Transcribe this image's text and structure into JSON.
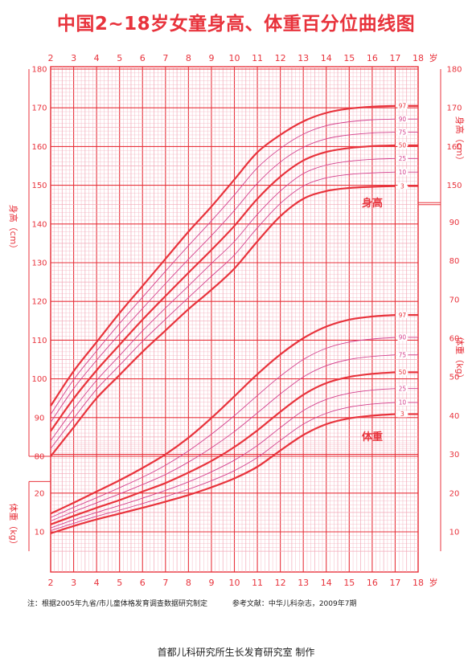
{
  "title": "中国2~18岁女童身高、体重百分位曲线图",
  "note": {
    "source": "注：根据2005年九省/市儿童体格发育调查数据研究制定",
    "reference": "参考文献：中华儿科杂志，2009年7期"
  },
  "footer": "首都儿科研究所生长发育研究室  制作",
  "colors": {
    "red": "#e8333c",
    "pink": "#d4418e",
    "grid": "#f2a9b8"
  },
  "chart_data": [
    {
      "type": "line",
      "title": "身高",
      "ylabel_left": "身高（cm）",
      "ylabel_right": "身高（cm）",
      "x_unit": "岁",
      "xlim": [
        2,
        18
      ],
      "ylim": [
        80,
        180
      ],
      "x_ticks": [
        "2",
        "3",
        "4",
        "5",
        "6",
        "7",
        "8",
        "9",
        "10",
        "11",
        "12",
        "13",
        "14",
        "15",
        "16",
        "17",
        "18"
      ],
      "y_ticks_left": [
        "80",
        "90",
        "100",
        "110",
        "120",
        "130",
        "140",
        "150",
        "160",
        "170",
        "180"
      ],
      "y_ticks_right": [
        "150",
        "160",
        "170",
        "180"
      ],
      "x": [
        2,
        3,
        4,
        5,
        6,
        7,
        8,
        9,
        10,
        11,
        12,
        13,
        14,
        15,
        16,
        17
      ],
      "series": [
        {
          "name": "3",
          "values": [
            80.0,
            87.5,
            95.0,
            101.0,
            107.0,
            112.5,
            118.0,
            123.0,
            128.5,
            135.5,
            142.0,
            146.5,
            148.5,
            149.3,
            149.6,
            149.8
          ]
        },
        {
          "name": "10",
          "values": [
            82.0,
            89.8,
            97.3,
            103.5,
            109.7,
            115.4,
            121.0,
            126.5,
            132.0,
            139.0,
            145.3,
            149.8,
            151.9,
            152.8,
            153.2,
            153.4
          ]
        },
        {
          "name": "25",
          "values": [
            84.0,
            92.2,
            99.6,
            106.0,
            112.4,
            118.3,
            124.0,
            129.8,
            135.5,
            142.5,
            148.5,
            153.0,
            155.2,
            156.2,
            156.7,
            156.9
          ]
        },
        {
          "name": "50",
          "values": [
            86.5,
            94.9,
            102.2,
            108.8,
            115.3,
            121.4,
            127.4,
            133.3,
            139.5,
            146.5,
            152.2,
            156.4,
            158.6,
            159.6,
            160.1,
            160.3
          ]
        },
        {
          "name": "75",
          "values": [
            88.8,
            97.5,
            104.8,
            111.6,
            118.2,
            124.6,
            130.9,
            137.0,
            143.5,
            150.5,
            156.0,
            159.8,
            162.0,
            163.0,
            163.5,
            163.7
          ]
        },
        {
          "name": "90",
          "values": [
            90.8,
            99.8,
            107.2,
            114.3,
            121.1,
            127.8,
            134.4,
            140.8,
            147.5,
            154.5,
            159.5,
            163.2,
            165.4,
            166.4,
            166.9,
            167.1
          ]
        },
        {
          "name": "97",
          "values": [
            93.0,
            102.0,
            109.5,
            117.0,
            124.0,
            131.0,
            138.0,
            144.5,
            151.5,
            158.5,
            163.0,
            166.5,
            168.7,
            169.8,
            170.3,
            170.5
          ]
        }
      ]
    },
    {
      "type": "line",
      "title": "体重",
      "ylabel_left": "体重（kg）",
      "ylabel_right": "体重（kg）",
      "x_unit": "岁",
      "xlim": [
        2,
        18
      ],
      "ylim": [
        5,
        95
      ],
      "y_ticks_left": [
        "10",
        "20"
      ],
      "y_ticks_right": [
        "10",
        "20",
        "30",
        "40",
        "50",
        "60",
        "70",
        "80",
        "90"
      ],
      "x": [
        2,
        3,
        4,
        5,
        6,
        7,
        8,
        9,
        10,
        11,
        12,
        13,
        14,
        15,
        16,
        17
      ],
      "series": [
        {
          "name": "3",
          "values": [
            9.6,
            11.5,
            13.2,
            14.7,
            16.2,
            17.8,
            19.5,
            21.5,
            23.8,
            26.8,
            31.0,
            35.0,
            37.8,
            39.3,
            40.0,
            40.4
          ]
        },
        {
          "name": "10",
          "values": [
            10.3,
            12.2,
            14.0,
            15.6,
            17.3,
            19.1,
            21.0,
            23.2,
            25.8,
            29.2,
            33.6,
            37.8,
            40.6,
            42.2,
            43.0,
            43.4
          ]
        },
        {
          "name": "25",
          "values": [
            11.0,
            13.1,
            15.0,
            16.8,
            18.7,
            20.7,
            22.9,
            25.5,
            28.5,
            32.3,
            36.9,
            41.3,
            44.2,
            45.8,
            46.6,
            47.0
          ]
        },
        {
          "name": "50",
          "values": [
            11.9,
            14.1,
            16.2,
            18.2,
            20.4,
            22.6,
            25.3,
            28.3,
            31.9,
            36.2,
            41.0,
            45.4,
            48.4,
            50.0,
            50.8,
            51.2
          ]
        },
        {
          "name": "75",
          "values": [
            12.8,
            15.2,
            17.5,
            19.8,
            22.2,
            24.8,
            28.0,
            31.7,
            35.9,
            40.7,
            45.6,
            50.0,
            52.9,
            54.5,
            55.3,
            55.7
          ]
        },
        {
          "name": "90",
          "values": [
            13.7,
            16.3,
            18.8,
            21.4,
            24.1,
            27.2,
            30.9,
            35.2,
            40.0,
            45.2,
            50.2,
            54.5,
            57.4,
            59.0,
            59.8,
            60.2
          ]
        },
        {
          "name": "97",
          "values": [
            14.7,
            17.5,
            20.4,
            23.3,
            26.5,
            30.0,
            34.3,
            39.4,
            45.0,
            50.7,
            55.8,
            60.0,
            63.0,
            64.8,
            65.6,
            66.0
          ]
        }
      ]
    }
  ]
}
